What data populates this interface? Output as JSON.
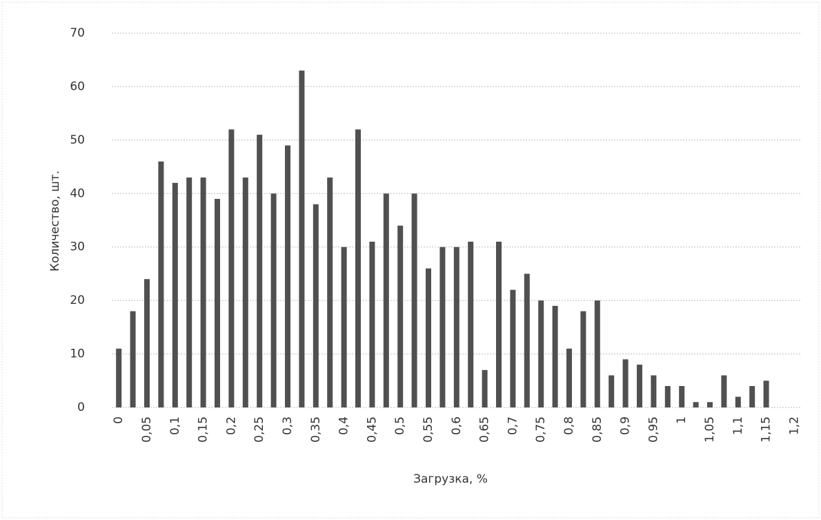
{
  "chart_data": {
    "type": "bar",
    "x_label": "Загрузка, %",
    "y_label": "Количество, шт.",
    "categories": [
      "0",
      null,
      "0,05",
      null,
      "0,1",
      null,
      "0,15",
      null,
      "0,2",
      null,
      "0,25",
      null,
      "0,3",
      null,
      "0,35",
      null,
      "0,4",
      null,
      "0,45",
      null,
      "0,5",
      null,
      "0,55",
      null,
      "0,6",
      null,
      "0,65",
      null,
      "0,7",
      null,
      "0,75",
      null,
      "0,8",
      null,
      "0,85",
      null,
      "0,9",
      null,
      "0,95",
      null,
      "1",
      null,
      "1,05",
      null,
      "1,1",
      null,
      "1,15",
      null,
      "1,2"
    ],
    "values": [
      11,
      18,
      24,
      46,
      42,
      43,
      43,
      39,
      52,
      43,
      51,
      40,
      49,
      63,
      38,
      43,
      30,
      52,
      31,
      40,
      34,
      40,
      26,
      30,
      30,
      31,
      7,
      31,
      22,
      25,
      20,
      19,
      11,
      18,
      20,
      6,
      9,
      8,
      6,
      4,
      4,
      1,
      1,
      6,
      2,
      4,
      5,
      0,
      0
    ],
    "color": "#505050",
    "ylim": [
      0,
      70
    ],
    "yticks": [
      0,
      10,
      20,
      30,
      40,
      50,
      60,
      70
    ],
    "grid": true
  }
}
